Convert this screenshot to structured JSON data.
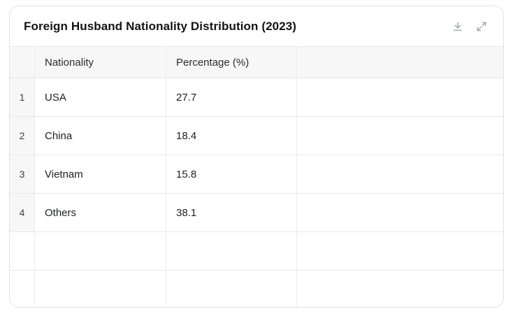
{
  "card": {
    "title": "Foreign Husband Nationality Distribution (2023)",
    "toolbar": {
      "icons": [
        "download-icon",
        "expand-icon"
      ]
    }
  },
  "table": {
    "columns": [
      "Nationality",
      "Percentage (%)"
    ],
    "rows": [
      {
        "index": "1",
        "nationality": "USA",
        "percentage": "27.7"
      },
      {
        "index": "2",
        "nationality": "China",
        "percentage": "18.4"
      },
      {
        "index": "3",
        "nationality": "Vietnam",
        "percentage": "15.8"
      },
      {
        "index": "4",
        "nationality": "Others",
        "percentage": "38.1"
      }
    ],
    "empty_row_count": 2
  },
  "chart_data": {
    "type": "table",
    "title": "Foreign Husband Nationality Distribution (2023)",
    "columns": [
      "Nationality",
      "Percentage (%)"
    ],
    "rows": [
      [
        "USA",
        27.7
      ],
      [
        "China",
        18.4
      ],
      [
        "Vietnam",
        15.8
      ],
      [
        "Others",
        38.1
      ]
    ]
  },
  "colors": {
    "header_bg": "#f7f7f7",
    "border": "#e8e8e8",
    "card_border": "#e3e3e3",
    "icon": "#9aa0a6",
    "title_text": "#141414",
    "cell_text": "#202124"
  }
}
